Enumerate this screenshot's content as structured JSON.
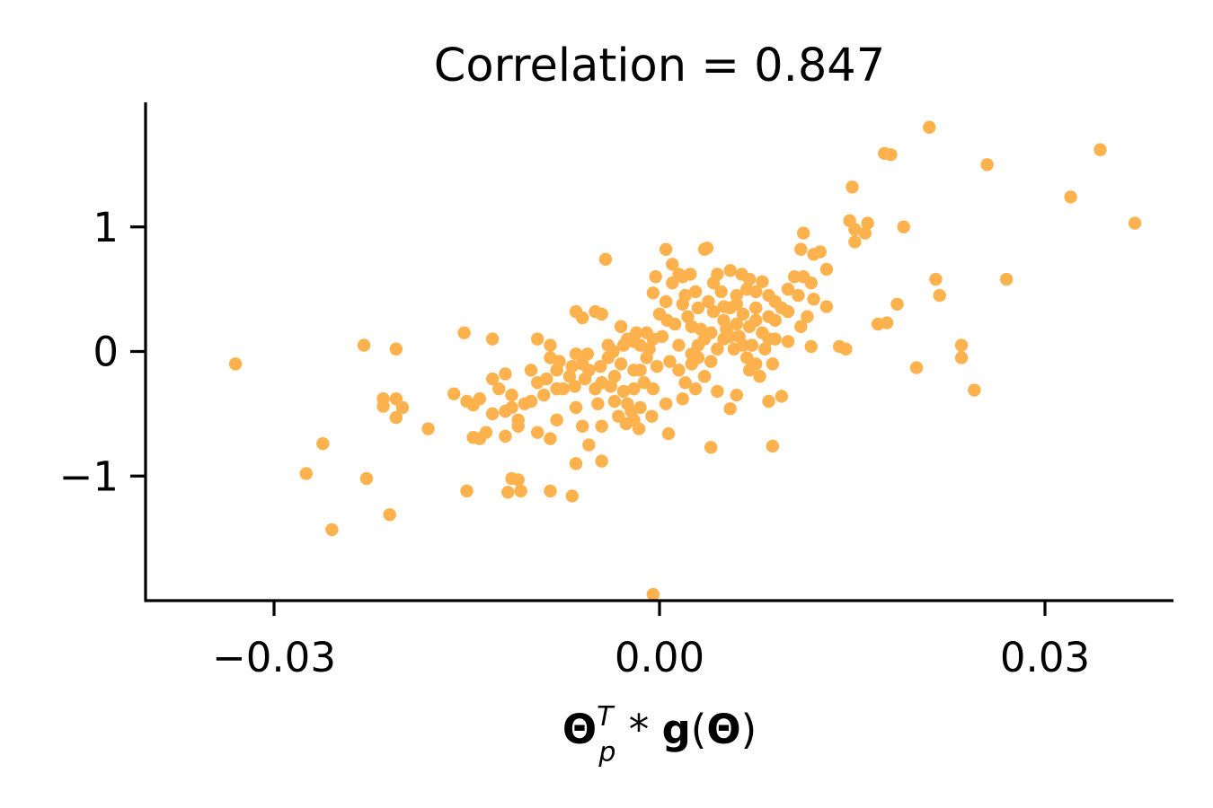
{
  "chart_data": {
    "type": "scatter",
    "title": "Correlation = 0.847",
    "xlabel": {
      "theta": "Θ",
      "sub": "p",
      "sup": "T",
      "op": " * ",
      "g": "g",
      "open": "(",
      "theta2": "Θ",
      "close": ")"
    },
    "ylabel": "",
    "xlim": [
      -0.04,
      0.04
    ],
    "ylim": [
      -2.0,
      2.0
    ],
    "x_ticks": [
      {
        "value": -0.03,
        "label": "−0.03"
      },
      {
        "value": 0.0,
        "label": "0.00"
      },
      {
        "value": 0.03,
        "label": "0.03"
      }
    ],
    "y_ticks": [
      {
        "value": -1,
        "label": "−1"
      },
      {
        "value": 0,
        "label": "0"
      },
      {
        "value": 1,
        "label": "1"
      }
    ],
    "point_color": "#fdb24e",
    "grid": false,
    "points": [
      {
        "x": 0.0343,
        "y": 1.62
      },
      {
        "x": 0.037,
        "y": 1.03
      },
      {
        "x": 0.032,
        "y": 1.24
      },
      {
        "x": 0.027,
        "y": 0.58
      },
      {
        "x": 0.0255,
        "y": 1.5
      },
      {
        "x": 0.0245,
        "y": -0.31
      },
      {
        "x": 0.0235,
        "y": 0.05
      },
      {
        "x": 0.0235,
        "y": -0.05
      },
      {
        "x": 0.0215,
        "y": 0.58
      },
      {
        "x": 0.0218,
        "y": 0.45
      },
      {
        "x": 0.021,
        "y": 1.8
      },
      {
        "x": 0.02,
        "y": -0.13
      },
      {
        "x": 0.019,
        "y": 1.0
      },
      {
        "x": 0.0185,
        "y": 0.38
      },
      {
        "x": 0.018,
        "y": 1.58
      },
      {
        "x": 0.0175,
        "y": 1.59
      },
      {
        "x": 0.0177,
        "y": 0.23
      },
      {
        "x": 0.017,
        "y": 0.22
      },
      {
        "x": 0.0162,
        "y": 1.03
      },
      {
        "x": 0.016,
        "y": 0.95
      },
      {
        "x": 0.0152,
        "y": 0.88
      },
      {
        "x": 0.015,
        "y": 1.32
      },
      {
        "x": 0.0148,
        "y": 1.05
      },
      {
        "x": 0.0152,
        "y": 0.98
      },
      {
        "x": 0.014,
        "y": 0.04
      },
      {
        "x": 0.0145,
        "y": 0.02
      },
      {
        "x": 0.013,
        "y": 0.36
      },
      {
        "x": 0.013,
        "y": 0.66
      },
      {
        "x": 0.0125,
        "y": 0.8
      },
      {
        "x": 0.012,
        "y": 0.78
      },
      {
        "x": 0.0118,
        "y": 0.55
      },
      {
        "x": 0.012,
        "y": 0.42
      },
      {
        "x": 0.0115,
        "y": 0.28
      },
      {
        "x": 0.011,
        "y": 0.2
      },
      {
        "x": 0.0118,
        "y": 0.04
      },
      {
        "x": 0.0112,
        "y": 0.95
      },
      {
        "x": 0.011,
        "y": 0.82
      },
      {
        "x": 0.0105,
        "y": 0.6
      },
      {
        "x": 0.01,
        "y": 0.5
      },
      {
        "x": 0.0095,
        "y": 0.35
      },
      {
        "x": 0.009,
        "y": 0.4
      },
      {
        "x": 0.0085,
        "y": 0.45
      },
      {
        "x": 0.008,
        "y": 0.56
      },
      {
        "x": 0.0075,
        "y": 0.48
      },
      {
        "x": 0.007,
        "y": 0.58
      },
      {
        "x": 0.0065,
        "y": 0.3
      },
      {
        "x": 0.006,
        "y": 0.22
      },
      {
        "x": 0.0055,
        "y": 0.12
      },
      {
        "x": 0.005,
        "y": 0.1
      },
      {
        "x": 0.0045,
        "y": 0.02
      },
      {
        "x": 0.0095,
        "y": -0.36
      },
      {
        "x": 0.0085,
        "y": 0.1
      },
      {
        "x": 0.0088,
        "y": -0.1
      },
      {
        "x": 0.009,
        "y": 0.1
      },
      {
        "x": 0.01,
        "y": 0.08
      },
      {
        "x": 0.0088,
        "y": -0.76
      },
      {
        "x": 0.0085,
        "y": -0.4
      },
      {
        "x": 0.0075,
        "y": -0.1
      },
      {
        "x": 0.007,
        "y": -0.15
      },
      {
        "x": 0.006,
        "y": -0.35
      },
      {
        "x": 0.0055,
        "y": -0.46
      },
      {
        "x": 0.0045,
        "y": -0.32
      },
      {
        "x": 0.004,
        "y": -0.08
      },
      {
        "x": 0.0035,
        "y": -0.2
      },
      {
        "x": 0.003,
        "y": -0.05
      },
      {
        "x": 0.0025,
        "y": 0.2
      },
      {
        "x": 0.002,
        "y": 0.45
      },
      {
        "x": 0.0018,
        "y": 0.6
      },
      {
        "x": 0.0035,
        "y": 0.82
      },
      {
        "x": 0.0037,
        "y": 0.83
      },
      {
        "x": 0.0005,
        "y": 0.82
      },
      {
        "x": 0.0015,
        "y": 0.62
      },
      {
        "x": 0.001,
        "y": 0.55
      },
      {
        "x": 0.0005,
        "y": 0.4
      },
      {
        "x": 0.0,
        "y": 0.3
      },
      {
        "x": -0.0005,
        "y": 0.47
      },
      {
        "x": -0.0003,
        "y": 0.6
      },
      {
        "x": -0.0005,
        "y": 0.1
      },
      {
        "x": -0.001,
        "y": -0.05
      },
      {
        "x": -0.0015,
        "y": -0.15
      },
      {
        "x": -0.002,
        "y": -0.3
      },
      {
        "x": -0.0015,
        "y": -0.45
      },
      {
        "x": -0.002,
        "y": -0.55
      },
      {
        "x": -0.0025,
        "y": -0.42
      },
      {
        "x": -0.0005,
        "y": -0.3
      },
      {
        "x": 0.0005,
        "y": -0.42
      },
      {
        "x": 0.0007,
        "y": -0.66
      },
      {
        "x": 0.004,
        "y": -0.77
      },
      {
        "x": 0.0015,
        "y": -0.15
      },
      {
        "x": 0.002,
        "y": -0.25
      },
      {
        "x": 0.0025,
        "y": -0.1
      },
      {
        "x": 0.003,
        "y": 0.05
      },
      {
        "x": 0.004,
        "y": 0.15
      },
      {
        "x": 0.005,
        "y": 0.25
      },
      {
        "x": 0.0055,
        "y": 0.35
      },
      {
        "x": 0.006,
        "y": 0.45
      },
      {
        "x": 0.0065,
        "y": 0.05
      },
      {
        "x": 0.007,
        "y": 0.2
      },
      {
        "x": 0.0075,
        "y": 0.35
      },
      {
        "x": 0.0045,
        "y": 0.62
      },
      {
        "x": 0.0055,
        "y": 0.65
      },
      {
        "x": 0.003,
        "y": 0.35
      },
      {
        "x": -0.003,
        "y": -0.1
      },
      {
        "x": -0.0035,
        "y": -0.2
      },
      {
        "x": -0.004,
        "y": -0.05
      },
      {
        "x": -0.0045,
        "y": -0.25
      },
      {
        "x": -0.005,
        "y": -0.3
      },
      {
        "x": -0.0055,
        "y": -0.15
      },
      {
        "x": -0.006,
        "y": -0.1
      },
      {
        "x": -0.0065,
        "y": -0.02
      },
      {
        "x": -0.007,
        "y": -0.2
      },
      {
        "x": -0.0075,
        "y": -0.3
      },
      {
        "x": -0.008,
        "y": -0.15
      },
      {
        "x": -0.0085,
        "y": -0.05
      },
      {
        "x": -0.009,
        "y": -0.35
      },
      {
        "x": -0.0095,
        "y": -0.25
      },
      {
        "x": -0.01,
        "y": -0.4
      },
      {
        "x": -0.008,
        "y": -0.55
      },
      {
        "x": -0.0065,
        "y": -0.45
      },
      {
        "x": -0.006,
        "y": -0.6
      },
      {
        "x": -0.0055,
        "y": -0.75
      },
      {
        "x": -0.0045,
        "y": -0.6
      },
      {
        "x": -0.0035,
        "y": -0.4
      },
      {
        "x": -0.004,
        "y": 0.05
      },
      {
        "x": -0.0045,
        "y": 0.3
      },
      {
        "x": -0.005,
        "y": 0.32
      },
      {
        "x": -0.006,
        "y": 0.27
      },
      {
        "x": -0.0065,
        "y": 0.32
      },
      {
        "x": -0.003,
        "y": 0.2
      },
      {
        "x": -0.0025,
        "y": 0.1
      },
      {
        "x": -0.002,
        "y": 0.08
      },
      {
        "x": -0.0015,
        "y": 0.05
      },
      {
        "x": -0.001,
        "y": 0.15
      },
      {
        "x": -0.0042,
        "y": 0.74
      },
      {
        "x": -0.0065,
        "y": -0.9
      },
      {
        "x": -0.0045,
        "y": -0.88
      },
      {
        "x": -0.002,
        "y": -0.15
      },
      {
        "x": -0.0012,
        "y": -0.25
      },
      {
        "x": -0.0085,
        "y": -0.7
      },
      {
        "x": -0.0095,
        "y": -0.65
      },
      {
        "x": -0.011,
        "y": -0.55
      },
      {
        "x": -0.012,
        "y": -0.48
      },
      {
        "x": -0.012,
        "y": -0.18
      },
      {
        "x": -0.0115,
        "y": -0.45
      },
      {
        "x": -0.013,
        "y": -0.22
      },
      {
        "x": -0.0125,
        "y": -0.3
      },
      {
        "x": -0.0135,
        "y": -0.65
      },
      {
        "x": -0.013,
        "y": -0.5
      },
      {
        "x": -0.012,
        "y": -0.68
      },
      {
        "x": -0.011,
        "y": -0.6
      },
      {
        "x": -0.0115,
        "y": -0.35
      },
      {
        "x": -0.0105,
        "y": -0.42
      },
      {
        "x": -0.01,
        "y": -0.15
      },
      {
        "x": -0.0095,
        "y": 0.1
      },
      {
        "x": -0.0085,
        "y": 0.05
      },
      {
        "x": -0.008,
        "y": -0.3
      },
      {
        "x": -0.0115,
        "y": -1.02
      },
      {
        "x": -0.011,
        "y": -1.03
      },
      {
        "x": -0.0108,
        "y": -1.12
      },
      {
        "x": -0.0118,
        "y": -1.13
      },
      {
        "x": -0.0085,
        "y": -1.12
      },
      {
        "x": -0.0068,
        "y": -1.16
      },
      {
        "x": -0.014,
        "y": -0.7
      },
      {
        "x": -0.0145,
        "y": -0.69
      },
      {
        "x": -0.015,
        "y": -1.12
      },
      {
        "x": -0.0152,
        "y": 0.15
      },
      {
        "x": -0.013,
        "y": 0.1
      },
      {
        "x": -0.014,
        "y": -0.38
      },
      {
        "x": -0.015,
        "y": -0.4
      },
      {
        "x": -0.016,
        "y": -0.34
      },
      {
        "x": -0.0145,
        "y": -0.43
      },
      {
        "x": -0.018,
        "y": -0.62
      },
      {
        "x": -0.0205,
        "y": -0.38
      },
      {
        "x": -0.02,
        "y": -0.45
      },
      {
        "x": -0.0205,
        "y": -0.53
      },
      {
        "x": -0.0215,
        "y": -0.38
      },
      {
        "x": -0.0215,
        "y": -0.44
      },
      {
        "x": -0.0205,
        "y": 0.02
      },
      {
        "x": -0.023,
        "y": 0.05
      },
      {
        "x": -0.0228,
        "y": -1.02
      },
      {
        "x": -0.021,
        "y": -1.31
      },
      {
        "x": -0.0255,
        "y": -1.43
      },
      {
        "x": -0.0262,
        "y": -0.74
      },
      {
        "x": -0.0275,
        "y": -0.98
      },
      {
        "x": -0.033,
        "y": -0.1
      },
      {
        "x": -0.0005,
        "y": -1.95
      },
      {
        "x": 0.005,
        "y": 0.36
      },
      {
        "x": 0.006,
        "y": 0.38
      },
      {
        "x": 0.0068,
        "y": 0.5
      },
      {
        "x": 0.0075,
        "y": 0.25
      },
      {
        "x": 0.008,
        "y": 0.15
      },
      {
        "x": 0.0085,
        "y": 0.28
      },
      {
        "x": 0.009,
        "y": 0.25
      },
      {
        "x": 0.01,
        "y": 0.32
      },
      {
        "x": 0.0108,
        "y": 0.45
      },
      {
        "x": 0.0112,
        "y": 0.6
      },
      {
        "x": 0.0035,
        "y": 0.1
      },
      {
        "x": 0.0025,
        "y": -0.02
      },
      {
        "x": 0.0015,
        "y": 0.05
      },
      {
        "x": 0.0008,
        "y": -0.08
      },
      {
        "x": -0.0002,
        "y": -0.12
      },
      {
        "x": -0.0008,
        "y": 0.02
      },
      {
        "x": 0.0012,
        "y": 0.22
      },
      {
        "x": 0.0022,
        "y": 0.28
      },
      {
        "x": 0.0032,
        "y": 0.18
      },
      {
        "x": 0.0042,
        "y": 0.32
      },
      {
        "x": 0.0052,
        "y": 0.18
      },
      {
        "x": 0.0062,
        "y": 0.12
      },
      {
        "x": 0.0072,
        "y": 0.05
      },
      {
        "x": 0.0082,
        "y": 0.02
      },
      {
        "x": -0.0028,
        "y": -0.32
      },
      {
        "x": -0.0038,
        "y": -0.28
      },
      {
        "x": -0.0048,
        "y": -0.42
      },
      {
        "x": -0.0058,
        "y": -0.22
      },
      {
        "x": -0.0068,
        "y": -0.12
      },
      {
        "x": -0.0078,
        "y": -0.08
      },
      {
        "x": -0.0088,
        "y": -0.22
      },
      {
        "x": -0.0022,
        "y": -0.48
      },
      {
        "x": -0.0032,
        "y": -0.52
      },
      {
        "x": 0.0002,
        "y": 0.12
      },
      {
        "x": 0.0006,
        "y": 0.25
      },
      {
        "x": 0.0018,
        "y": 0.38
      },
      {
        "x": 0.0028,
        "y": 0.48
      },
      {
        "x": 0.0038,
        "y": 0.4
      },
      {
        "x": 0.0048,
        "y": 0.48
      },
      {
        "x": -0.0018,
        "y": 0.15
      },
      {
        "x": -0.0028,
        "y": 0.05
      },
      {
        "x": -0.0036,
        "y": 0.0
      },
      {
        "x": -0.0046,
        "y": -0.12
      },
      {
        "x": -0.0056,
        "y": -0.02
      },
      {
        "x": -0.0066,
        "y": -0.28
      },
      {
        "x": 0.0058,
        "y": 0.02
      },
      {
        "x": 0.0068,
        "y": -0.05
      },
      {
        "x": 0.0078,
        "y": -0.2
      },
      {
        "x": 0.0028,
        "y": -0.3
      },
      {
        "x": 0.0018,
        "y": -0.38
      },
      {
        "x": -0.0006,
        "y": -0.52
      },
      {
        "x": -0.0016,
        "y": -0.62
      },
      {
        "x": -0.0026,
        "y": -0.58
      },
      {
        "x": 0.001,
        "y": 0.7
      },
      {
        "x": 0.0024,
        "y": 0.62
      },
      {
        "x": 0.0042,
        "y": 0.55
      },
      {
        "x": 0.0064,
        "y": 0.62
      }
    ]
  }
}
